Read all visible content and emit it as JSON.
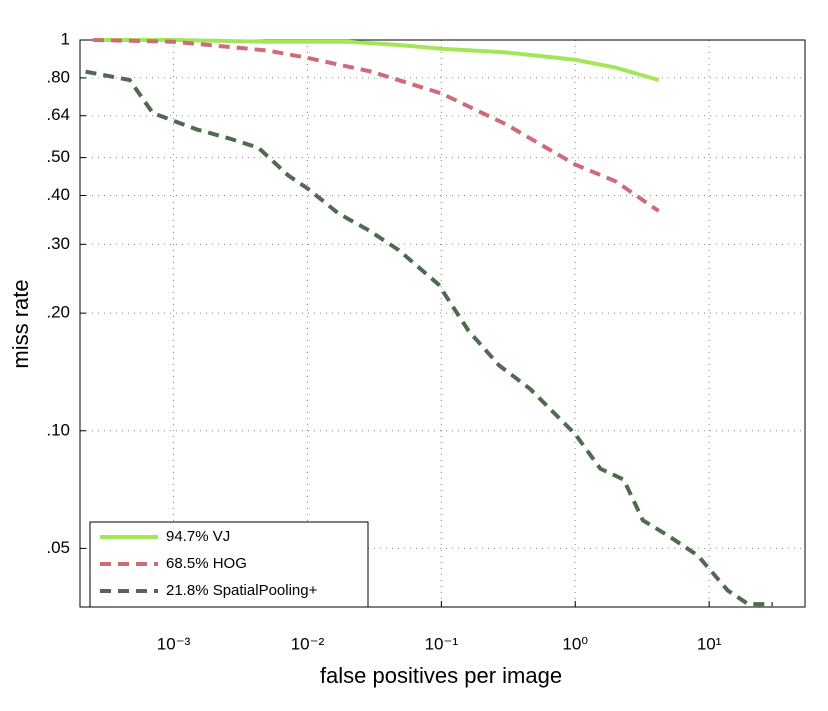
{
  "chart_data": {
    "type": "line",
    "x_label": "false positives per image",
    "y_label": "miss rate",
    "xlog": true,
    "ylog": true,
    "grid": true,
    "legend": "lower left",
    "xlim": [
      0.0002,
      52
    ],
    "ylim": [
      0.0354,
      1
    ],
    "xticks": [
      {
        "value": 0.001,
        "label": "10⁻³"
      },
      {
        "value": 0.01,
        "label": "10⁻²"
      },
      {
        "value": 0.1,
        "label": "10⁻¹"
      },
      {
        "value": 1,
        "label": "10⁰"
      },
      {
        "value": 10,
        "label": "10¹"
      }
    ],
    "yticks": [
      1,
      {
        "value": 0.8,
        "label": ".80"
      },
      {
        "value": 0.64,
        "label": ".64"
      },
      {
        "value": 0.5,
        "label": ".50"
      },
      {
        "value": 0.4,
        "label": ".40"
      },
      {
        "value": 0.3,
        "label": ".30"
      },
      {
        "value": 0.2,
        "label": ".20"
      },
      {
        "value": 0.1,
        "label": ".10"
      },
      {
        "value": 0.05,
        "label": ".05"
      }
    ],
    "series": [
      {
        "name": "94.7% VJ",
        "color": "#a4e65a",
        "dashed": false,
        "x": [
          0.00025,
          0.001,
          0.005,
          0.02,
          0.05,
          0.1,
          0.3,
          1,
          2,
          4.2
        ],
        "values": [
          1,
          1,
          0.99,
          0.99,
          0.97,
          0.95,
          0.93,
          0.89,
          0.85,
          0.79
        ]
      },
      {
        "name": "68.5% HOG",
        "color": "#d06a78",
        "dashed": true,
        "x": [
          0.00025,
          0.001,
          0.005,
          0.01,
          0.03,
          0.1,
          0.3,
          1,
          2,
          4.2
        ],
        "values": [
          1,
          0.99,
          0.94,
          0.9,
          0.83,
          0.73,
          0.61,
          0.48,
          0.435,
          0.365
        ]
      },
      {
        "name": "21.8% SpatialPooling+",
        "color": "#4f6a4f",
        "dashed": true,
        "x": [
          0.00022,
          0.00047,
          0.0007,
          0.0015,
          0.0026,
          0.0043,
          0.0072,
          0.0102,
          0.017,
          0.029,
          0.048,
          0.095,
          0.16,
          0.27,
          0.46,
          1.0,
          1.54,
          2.3,
          3.2,
          4.9,
          8.2,
          13.8,
          19.6,
          30
        ],
        "values": [
          0.83,
          0.79,
          0.65,
          0.59,
          0.56,
          0.53,
          0.45,
          0.415,
          0.36,
          0.325,
          0.29,
          0.237,
          0.18,
          0.147,
          0.128,
          0.098,
          0.08,
          0.075,
          0.059,
          0.054,
          0.048,
          0.039,
          0.036,
          0.036
        ]
      }
    ]
  }
}
